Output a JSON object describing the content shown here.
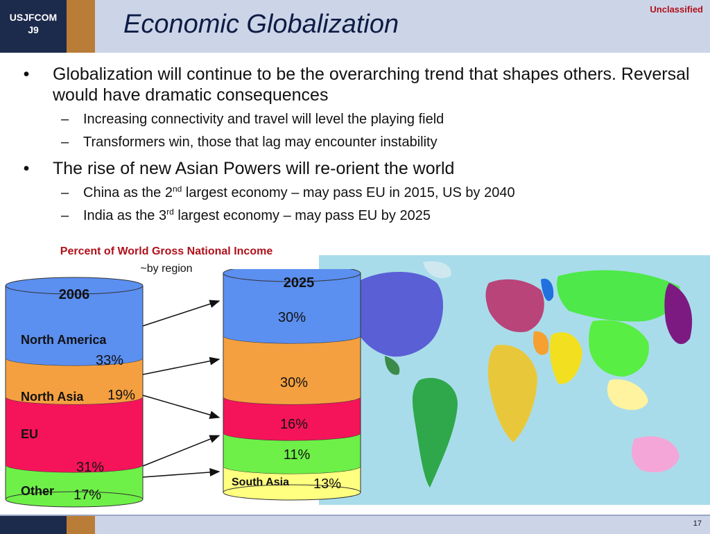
{
  "header": {
    "org_line1": "USJFCOM",
    "org_line2": "J9",
    "title": "Economic Globalization",
    "classification": "Unclassified"
  },
  "bullets": [
    {
      "text": "Globalization will continue to be the overarching trend that shapes others.  Reversal would have dramatic consequences",
      "subs": [
        {
          "text": "Increasing connectivity and travel will level the playing field"
        },
        {
          "text": "Transformers win, those that lag may encounter instability"
        }
      ]
    },
    {
      "text": "The rise of new Asian Powers will re-orient the world",
      "subs": [
        {
          "pre": "China as the 2",
          "sup": "nd",
          "post": " largest economy – may pass EU in 2015, US by 2040"
        },
        {
          "pre": "India as the 3",
          "sup": "rd",
          "post": " largest economy – may pass EU by 2025"
        }
      ]
    }
  ],
  "chart_data": {
    "type": "table",
    "title": "Percent of World Gross National Income",
    "subtitle": "~by region",
    "stack_2006": {
      "label": "2006",
      "segments": [
        {
          "region": "North America",
          "value": "33%",
          "color": "#5b8ff0"
        },
        {
          "region": "North Asia",
          "value": "19%",
          "color": "#f5a040"
        },
        {
          "region": "EU",
          "value": "31%",
          "color": "#f5145a"
        },
        {
          "region": "Other",
          "value": "17%",
          "color": "#6ef048"
        }
      ]
    },
    "stack_2025": {
      "label": "2025",
      "segments": [
        {
          "region": "",
          "value": "30%",
          "color": "#5b8ff0"
        },
        {
          "region": "",
          "value": "30%",
          "color": "#f5a040"
        },
        {
          "region": "",
          "value": "16%",
          "color": "#f5145a"
        },
        {
          "region": "",
          "value": "11%",
          "color": "#6ef048"
        },
        {
          "region": "South Asia",
          "value": "13%",
          "color": "#ffff80"
        }
      ]
    }
  },
  "footer": {
    "page_number": "17"
  }
}
